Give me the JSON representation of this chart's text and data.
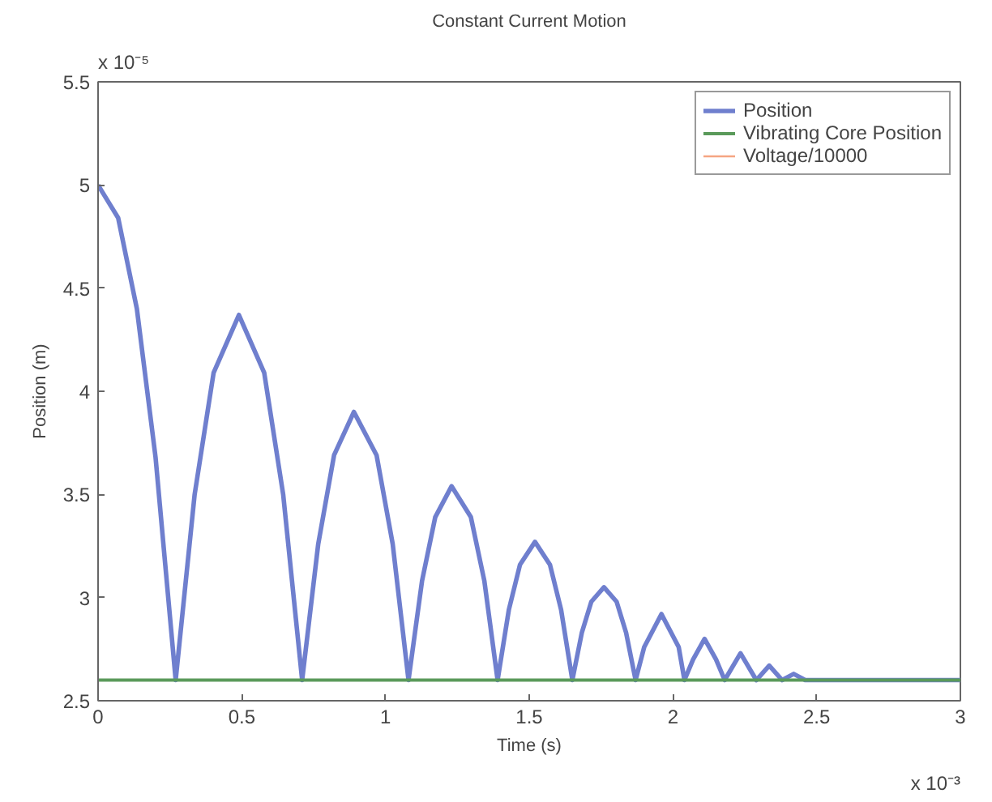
{
  "chart_data": {
    "type": "line",
    "title": "Constant Current Motion",
    "xlabel": "Time (s)",
    "ylabel": "Position (m)",
    "annotations": [
      "x 10⁻⁵",
      "x 10⁻³"
    ],
    "xlim": [
      0,
      3
    ],
    "ylim": [
      2.5,
      5.5
    ],
    "xticks": [
      0,
      0.5,
      1,
      1.5,
      2,
      2.5,
      3
    ],
    "yticks": [
      2.5,
      3,
      3.5,
      4,
      4.5,
      5,
      5.5
    ],
    "grid": false,
    "legend": "top right",
    "series": [
      {
        "name": "Position",
        "color": "#6f7fce",
        "x": [
          0,
          0.07,
          0.135,
          0.2,
          0.27,
          0.336,
          0.402,
          0.49,
          0.578,
          0.644,
          0.71,
          0.766,
          0.821,
          0.89,
          0.969,
          1.025,
          1.08,
          1.127,
          1.173,
          1.23,
          1.297,
          1.344,
          1.39,
          1.429,
          1.468,
          1.52,
          1.572,
          1.611,
          1.65,
          1.683,
          1.716,
          1.76,
          1.804,
          1.837,
          1.87,
          1.9,
          1.96,
          2.02,
          2.04,
          2.07,
          2.11,
          2.15,
          2.18,
          2.235,
          2.29,
          2.335,
          2.38,
          2.42,
          2.46,
          2.5,
          3
        ],
        "values": [
          5,
          4.84,
          4.4,
          3.68,
          2.6,
          3.5,
          4.09,
          4.37,
          4.09,
          3.5,
          2.6,
          3.26,
          3.69,
          3.9,
          3.69,
          3.26,
          2.6,
          3.08,
          3.39,
          3.54,
          3.39,
          3.08,
          2.6,
          2.94,
          3.16,
          3.27,
          3.16,
          2.94,
          2.6,
          2.83,
          2.98,
          3.05,
          2.98,
          2.83,
          2.6,
          2.76,
          2.92,
          2.76,
          2.6,
          2.7,
          2.8,
          2.7,
          2.6,
          2.73,
          2.6,
          2.67,
          2.6,
          2.63,
          2.6,
          2.6,
          2.6
        ]
      },
      {
        "name": "Vibrating Core Position",
        "color": "#5a9a5a",
        "x": [
          0,
          3
        ],
        "values": [
          2.6,
          2.6
        ]
      },
      {
        "name": "Voltage/10000",
        "color": "#f5a582"
      }
    ]
  }
}
